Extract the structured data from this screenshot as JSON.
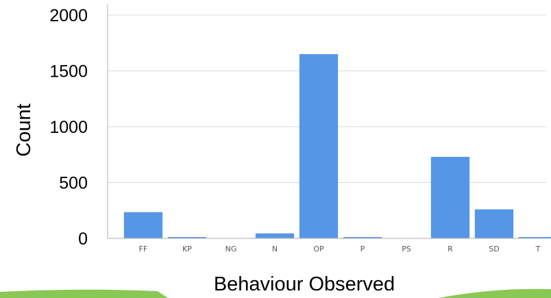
{
  "chart_data": {
    "type": "bar",
    "title": "",
    "xlabel": "Behaviour Observed",
    "ylabel": "Count",
    "categories": [
      "FF",
      "KP",
      "NG",
      "N",
      "OP",
      "P",
      "PS",
      "R",
      "SD",
      "T"
    ],
    "values": [
      235,
      5,
      0,
      45,
      1650,
      3,
      0,
      730,
      260,
      10
    ],
    "ylim": [
      0,
      2000
    ],
    "yticks": [
      0,
      500,
      1000,
      1500,
      2000
    ],
    "grid": true,
    "bar_color": "#5597e6",
    "gridline_color": "#d9d9d9",
    "axis_color": "#bdbdbd"
  },
  "footer": {
    "accent_color": "#7cc242"
  }
}
